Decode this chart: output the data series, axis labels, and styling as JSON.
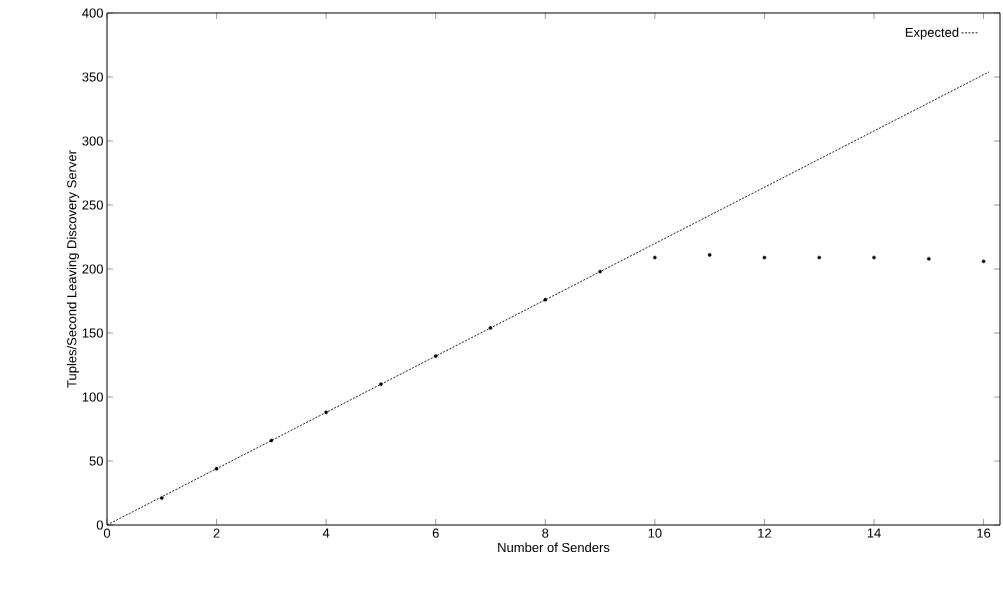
{
  "chart_data": {
    "type": "line",
    "xlabel": "Number of Senders",
    "ylabel": "Tuples/Second Leaving Discovery Server",
    "xlim": [
      0,
      16.3
    ],
    "ylim": [
      0,
      400
    ],
    "xticks": [
      0,
      2,
      4,
      6,
      8,
      10,
      12,
      14,
      16
    ],
    "yticks": [
      0,
      50,
      100,
      150,
      200,
      250,
      300,
      350,
      400
    ],
    "legend": "top right",
    "grid": false,
    "series": [
      {
        "name": "Expected",
        "line_style": "dashed",
        "marker": "none",
        "color": "#000000",
        "x": [
          0,
          16.1
        ],
        "values": [
          0,
          354
        ]
      },
      {
        "type": "scatter",
        "marker": "circle",
        "color": "#000000",
        "x": [
          1,
          2,
          3,
          4,
          5,
          6,
          7,
          8,
          9,
          10,
          11,
          12,
          13,
          14,
          15,
          16
        ],
        "values": [
          21,
          44,
          66,
          88,
          110,
          132,
          154,
          176,
          198,
          209,
          211,
          209,
          209,
          209,
          208,
          206
        ]
      }
    ]
  }
}
